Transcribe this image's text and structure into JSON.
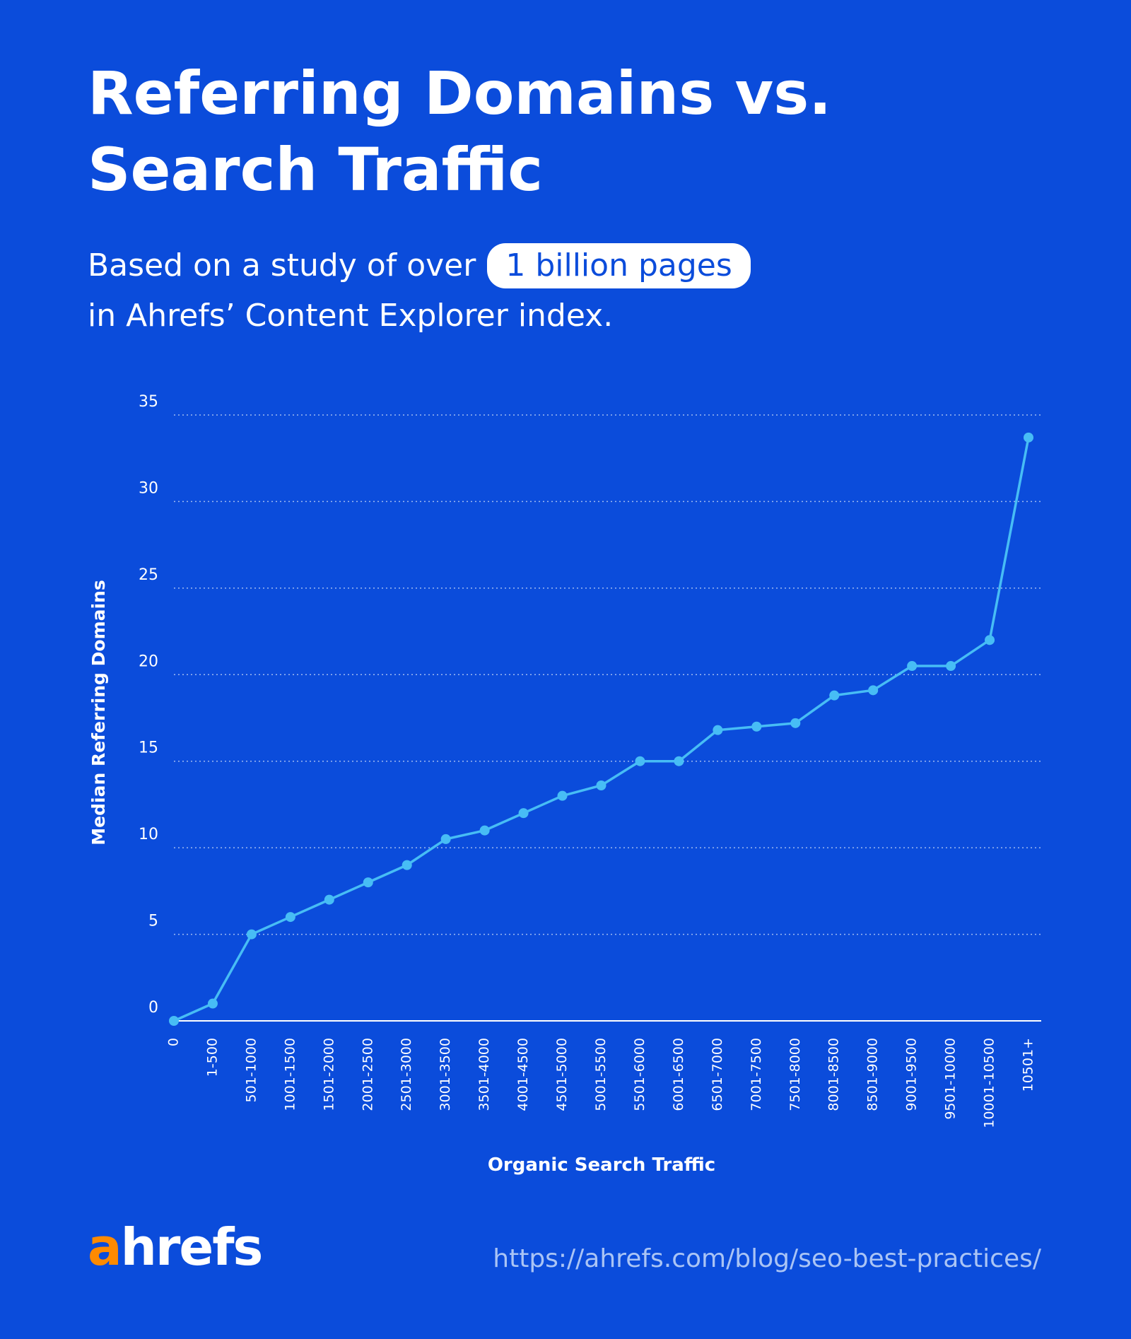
{
  "header": {
    "title": [
      "Referring Domains vs.",
      "Search Traffic"
    ],
    "subtitle": {
      "before": "Based on a study of over",
      "highlight": "1 billion pages",
      "after": "in Ahrefs’ Content Explorer index."
    }
  },
  "chart_data": {
    "type": "line",
    "x_label": "Organic Search Traffic",
    "y_label": "Median Referring Domains",
    "categories": [
      "0",
      "1-500",
      "501-1000",
      "1001-1500",
      "1501-2000",
      "2001-2500",
      "2501-3000",
      "3001-3500",
      "3501-4000",
      "4001-4500",
      "4501-5000",
      "5001-5500",
      "5501-6000",
      "6001-6500",
      "6501-7000",
      "7001-7500",
      "7501-8000",
      "8001-8500",
      "8501-9000",
      "9001-9500",
      "9501-10000",
      "10001-10500",
      "10501+"
    ],
    "values": [
      0,
      1,
      5,
      6,
      7,
      8,
      9,
      10.5,
      11,
      12,
      13,
      13.6,
      15,
      15,
      16.8,
      17,
      17.2,
      18.8,
      19.1,
      20.5,
      20.5,
      22,
      33.7
    ],
    "color": "#47bdf5",
    "ylim": [
      0,
      35
    ],
    "yticks": [
      0,
      5,
      10,
      15,
      20,
      25,
      30,
      35
    ],
    "grid": true
  },
  "footer": {
    "logo": {
      "accent": "a",
      "rest": "hrefs"
    },
    "url": "https://ahrefs.com/blog/seo-best-practices/"
  }
}
